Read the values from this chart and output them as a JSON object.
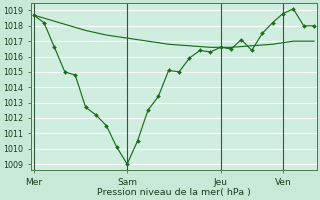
{
  "bg_color": "#c8e8d8",
  "plot_bg": "#d0eee0",
  "grid_color": "#ffffff",
  "line_color": "#1a6e1a",
  "marker_color": "#1a6e1a",
  "xlabel": "Pression niveau de la mer( hPa )",
  "ylim_min": 1008.6,
  "ylim_max": 1019.5,
  "yticks": [
    1009,
    1010,
    1011,
    1012,
    1013,
    1014,
    1015,
    1016,
    1017,
    1018,
    1019
  ],
  "xtick_labels": [
    "Mer",
    "Sam",
    "Jeu",
    "Ven"
  ],
  "xtick_positions": [
    0,
    9,
    18,
    24
  ],
  "vline_positions": [
    0,
    9,
    18,
    24
  ],
  "xlim_min": -0.3,
  "xlim_max": 27.3,
  "smooth_x": [
    0,
    1,
    2,
    3,
    4,
    5,
    6,
    7,
    8,
    9,
    10,
    11,
    12,
    13,
    14,
    15,
    16,
    17,
    18,
    19,
    20,
    21,
    22,
    23,
    24,
    25,
    26,
    27
  ],
  "smooth_y": [
    1018.7,
    1018.5,
    1018.3,
    1018.1,
    1017.9,
    1017.7,
    1017.55,
    1017.4,
    1017.3,
    1017.2,
    1017.1,
    1017.0,
    1016.9,
    1016.8,
    1016.75,
    1016.7,
    1016.65,
    1016.6,
    1016.6,
    1016.6,
    1016.65,
    1016.7,
    1016.75,
    1016.8,
    1016.9,
    1017.0,
    1017.0,
    1017.0
  ],
  "detail_x": [
    0,
    1,
    2,
    3,
    4,
    5,
    6,
    7,
    8,
    9,
    10,
    11,
    12,
    13,
    14,
    15,
    16,
    17,
    18,
    19,
    20,
    21,
    22,
    23,
    24,
    25,
    26,
    27
  ],
  "detail_y": [
    1018.7,
    1018.2,
    1016.6,
    1015.0,
    1014.8,
    1012.7,
    1012.2,
    1011.5,
    1010.1,
    1009.0,
    1010.5,
    1012.5,
    1013.4,
    1015.1,
    1015.0,
    1015.9,
    1016.4,
    1016.3,
    1016.6,
    1016.5,
    1017.1,
    1016.4,
    1017.5,
    1018.2,
    1018.8,
    1019.1,
    1018.0,
    1018.0
  ]
}
